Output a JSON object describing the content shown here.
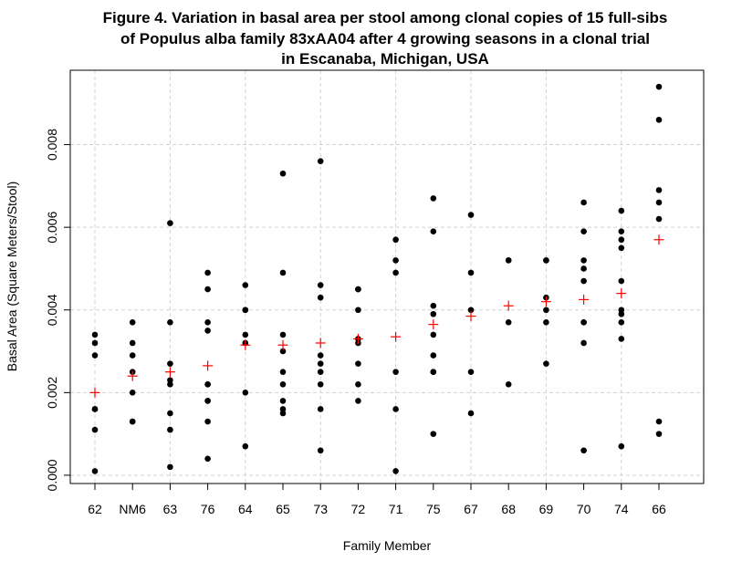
{
  "chart_data": {
    "type": "scatter",
    "title_lines": [
      "Figure 4. Variation in basal area per stool among clonal copies of 15 full-sibs",
      "of Populus alba family 83xAA04 after 4 growing seasons in a clonal trial",
      "in Escanaba, Michigan, USA"
    ],
    "xlabel": "Family Member",
    "ylabel": "Basal Area (Square Meters/Stool)",
    "categories": [
      "62",
      "NM6",
      "63",
      "76",
      "64",
      "65",
      "73",
      "72",
      "71",
      "75",
      "67",
      "68",
      "69",
      "70",
      "74",
      "66"
    ],
    "ylim": [
      -0.0002,
      0.0098
    ],
    "yticks": [
      0.0,
      0.002,
      0.004,
      0.006,
      0.008
    ],
    "ytick_labels": [
      "0.000",
      "0.002",
      "0.004",
      "0.006",
      "0.008"
    ],
    "grid": true,
    "colors": {
      "points": "#000000",
      "mean_marker": "#ff0000",
      "grid": "#d3d3d3"
    },
    "series": [
      {
        "points": [
          [
            0,
            0.0034
          ],
          [
            0,
            0.0032
          ],
          [
            0,
            0.0029
          ],
          [
            0,
            0.0016
          ],
          [
            0,
            0.0016
          ],
          [
            0,
            0.0011
          ],
          [
            0,
            0.0001
          ],
          [
            1,
            0.0037
          ],
          [
            1,
            0.0032
          ],
          [
            1,
            0.0029
          ],
          [
            1,
            0.0025
          ],
          [
            1,
            0.002
          ],
          [
            1,
            0.0013
          ],
          [
            1,
            0.0013
          ],
          [
            2,
            0.0061
          ],
          [
            2,
            0.0037
          ],
          [
            2,
            0.0027
          ],
          [
            2,
            0.0023
          ],
          [
            2,
            0.0022
          ],
          [
            2,
            0.0015
          ],
          [
            2,
            0.0011
          ],
          [
            2,
            0.0002
          ],
          [
            3,
            0.0049
          ],
          [
            3,
            0.0045
          ],
          [
            3,
            0.0037
          ],
          [
            3,
            0.0035
          ],
          [
            3,
            0.0022
          ],
          [
            3,
            0.0022
          ],
          [
            3,
            0.0018
          ],
          [
            3,
            0.0018
          ],
          [
            3,
            0.0013
          ],
          [
            3,
            0.0004
          ],
          [
            4,
            0.0046
          ],
          [
            4,
            0.004
          ],
          [
            4,
            0.004
          ],
          [
            4,
            0.0034
          ],
          [
            4,
            0.0032
          ],
          [
            4,
            0.002
          ],
          [
            4,
            0.0007
          ],
          [
            5,
            0.0073
          ],
          [
            5,
            0.0049
          ],
          [
            5,
            0.0034
          ],
          [
            5,
            0.003
          ],
          [
            5,
            0.0025
          ],
          [
            5,
            0.0022
          ],
          [
            5,
            0.0018
          ],
          [
            5,
            0.0016
          ],
          [
            5,
            0.0015
          ],
          [
            6,
            0.0076
          ],
          [
            6,
            0.0046
          ],
          [
            6,
            0.0043
          ],
          [
            6,
            0.0029
          ],
          [
            6,
            0.0027
          ],
          [
            6,
            0.0025
          ],
          [
            6,
            0.0022
          ],
          [
            6,
            0.0016
          ],
          [
            6,
            0.0006
          ],
          [
            7,
            0.0045
          ],
          [
            7,
            0.0045
          ],
          [
            7,
            0.004
          ],
          [
            7,
            0.0033
          ],
          [
            7,
            0.0032
          ],
          [
            7,
            0.0027
          ],
          [
            7,
            0.0022
          ],
          [
            7,
            0.0018
          ],
          [
            8,
            0.0057
          ],
          [
            8,
            0.0052
          ],
          [
            8,
            0.0049
          ],
          [
            8,
            0.0025
          ],
          [
            8,
            0.0016
          ],
          [
            8,
            0.0001
          ],
          [
            9,
            0.0067
          ],
          [
            9,
            0.0059
          ],
          [
            9,
            0.0041
          ],
          [
            9,
            0.0039
          ],
          [
            9,
            0.0034
          ],
          [
            9,
            0.0029
          ],
          [
            9,
            0.0025
          ],
          [
            9,
            0.0025
          ],
          [
            9,
            0.001
          ],
          [
            10,
            0.0063
          ],
          [
            10,
            0.0049
          ],
          [
            10,
            0.004
          ],
          [
            10,
            0.0025
          ],
          [
            10,
            0.0015
          ],
          [
            11,
            0.0052
          ],
          [
            11,
            0.0052
          ],
          [
            11,
            0.0037
          ],
          [
            11,
            0.0022
          ],
          [
            12,
            0.0052
          ],
          [
            12,
            0.0052
          ],
          [
            12,
            0.0043
          ],
          [
            12,
            0.004
          ],
          [
            12,
            0.0037
          ],
          [
            12,
            0.0027
          ],
          [
            13,
            0.0066
          ],
          [
            13,
            0.0059
          ],
          [
            13,
            0.0052
          ],
          [
            13,
            0.005
          ],
          [
            13,
            0.0047
          ],
          [
            13,
            0.0037
          ],
          [
            13,
            0.0037
          ],
          [
            13,
            0.0032
          ],
          [
            13,
            0.0006
          ],
          [
            14,
            0.0064
          ],
          [
            14,
            0.0059
          ],
          [
            14,
            0.0057
          ],
          [
            14,
            0.0055
          ],
          [
            14,
            0.0047
          ],
          [
            14,
            0.004
          ],
          [
            14,
            0.0039
          ],
          [
            14,
            0.0037
          ],
          [
            14,
            0.0033
          ],
          [
            14,
            0.0007
          ],
          [
            15,
            0.0094
          ],
          [
            15,
            0.0086
          ],
          [
            15,
            0.0069
          ],
          [
            15,
            0.0066
          ],
          [
            15,
            0.0062
          ],
          [
            15,
            0.0013
          ],
          [
            15,
            0.001
          ]
        ]
      },
      {
        "marker": "plus",
        "values": [
          0.002,
          0.0024,
          0.0025,
          0.00265,
          0.00315,
          0.00315,
          0.0032,
          0.0033,
          0.00335,
          0.00365,
          0.00385,
          0.0041,
          0.0042,
          0.00425,
          0.0044,
          0.0057
        ]
      }
    ]
  }
}
